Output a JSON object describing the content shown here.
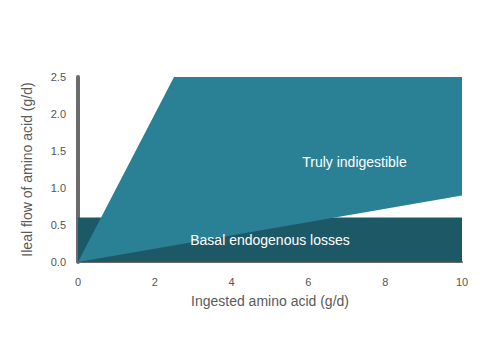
{
  "chart_data": {
    "type": "area",
    "stacked": true,
    "grid": false,
    "x_label": "Ingested amino acid (g/d)",
    "y_label": "Ileal flow of amino acid (g/d)",
    "x": [
      0,
      10
    ],
    "series": [
      {
        "name": "Basal endogenous losses",
        "color": "#1d5866",
        "values": [
          0.6,
          0.6
        ]
      },
      {
        "name": "Truly indigestible",
        "color": "#2a8196",
        "values": [
          0,
          1.8
        ]
      }
    ],
    "xlim": [
      0,
      10
    ],
    "xticks": [
      0,
      2,
      4,
      6,
      8,
      10
    ],
    "ylim": [
      0,
      2.5
    ],
    "yticks": [
      {
        "value": 0,
        "label": "0.0"
      },
      {
        "value": 0.5,
        "label": "0.5"
      },
      {
        "value": 1,
        "label": "1.0"
      },
      {
        "value": 1.5,
        "label": "1.5"
      },
      {
        "value": 2,
        "label": "2.0"
      },
      {
        "value": 2.5,
        "label": "2.5"
      }
    ]
  }
}
